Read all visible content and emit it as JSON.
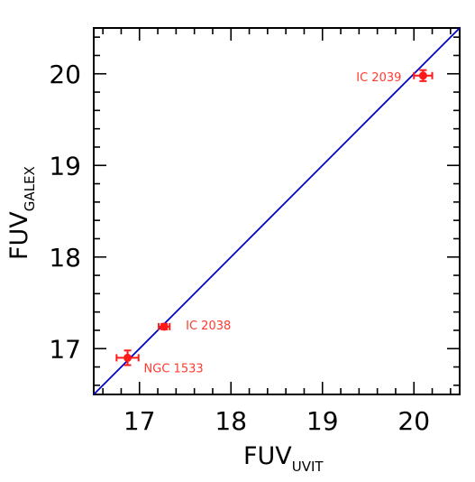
{
  "chart_data": {
    "type": "scatter",
    "xlabel": {
      "main": "FUV",
      "sub": "UVIT"
    },
    "ylabel": {
      "main": "FUV",
      "sub": "GALEX"
    },
    "xlim": [
      16.5,
      20.5
    ],
    "ylim": [
      16.5,
      20.5
    ],
    "x_ticks": [
      17,
      18,
      19,
      20
    ],
    "y_ticks": [
      17,
      18,
      19,
      20
    ],
    "x_tick_labels": [
      "17",
      "18",
      "19",
      "20"
    ],
    "y_tick_labels": [
      "17",
      "18",
      "19",
      "20"
    ],
    "grid": false,
    "reference_line": {
      "kind": "one-to-one",
      "from": [
        16.5,
        16.5
      ],
      "to": [
        20.5,
        20.5
      ],
      "color": "#0000cc"
    },
    "marker_color": "#ff1a1a",
    "points": [
      {
        "label": "NGC 1533",
        "x": 16.87,
        "y": 16.9,
        "xerr": 0.12,
        "yerr": 0.08
      },
      {
        "label": "IC 2038",
        "x": 17.27,
        "y": 17.24,
        "xerr": 0.06,
        "yerr": 0.03
      },
      {
        "label": "IC 2039",
        "x": 20.1,
        "y": 19.98,
        "xerr": 0.1,
        "yerr": 0.06
      }
    ]
  }
}
